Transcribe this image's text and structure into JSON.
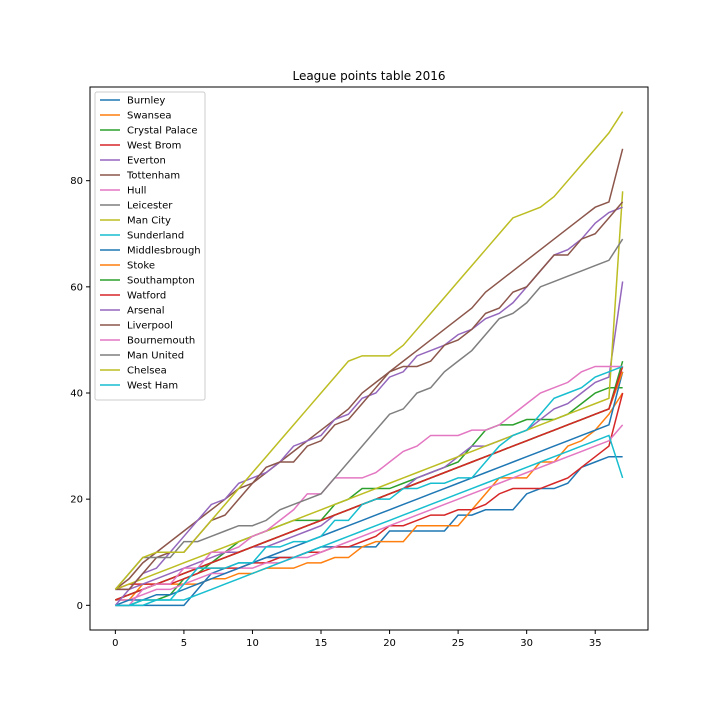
{
  "chart_data": {
    "type": "line",
    "title": "League points table 2016",
    "xlabel": "",
    "ylabel": "",
    "xlim": [
      -1.85,
      38.85
    ],
    "ylim": [
      -4.65,
      97.65
    ],
    "xticks": [
      0,
      5,
      10,
      15,
      20,
      25,
      30,
      35
    ],
    "yticks": [
      0,
      20,
      40,
      60,
      80
    ],
    "grid": false,
    "legend": "top-left",
    "series": [
      {
        "name": "Burnley",
        "color": "#1f77b4",
        "values": [
          0,
          0,
          0,
          0,
          0,
          0,
          3,
          6,
          7,
          8,
          8,
          9,
          9,
          9,
          10,
          11,
          11,
          11,
          11,
          11,
          14,
          14,
          14,
          14,
          14,
          17,
          17,
          18,
          18,
          18,
          21,
          22,
          22,
          23,
          26,
          27,
          28,
          28
        ]
      },
      {
        "name": "Swansea",
        "color": "#ff7f0e",
        "values": [
          1,
          1,
          4,
          4,
          4,
          4,
          4,
          5,
          5,
          6,
          6,
          7,
          7,
          7,
          8,
          8,
          9,
          9,
          11,
          12,
          12,
          12,
          15,
          15,
          15,
          15,
          18,
          21,
          24,
          24,
          24,
          27,
          27,
          30,
          31,
          33,
          36,
          40
        ]
      },
      {
        "name": "Crystal Palace",
        "color": "#2ca02c",
        "values": [
          0,
          0,
          1,
          1,
          2,
          5,
          6,
          8,
          10,
          12,
          13,
          14,
          15,
          16,
          16,
          16,
          19,
          20,
          22,
          22,
          22,
          23,
          24,
          25,
          26,
          27,
          30,
          33,
          34,
          34,
          35,
          35,
          35,
          36,
          38,
          40,
          41,
          41
        ]
      },
      {
        "name": "West Brom",
        "color": "#d62728",
        "values": [
          3,
          4,
          4,
          4,
          4,
          5,
          6,
          7,
          7,
          7,
          8,
          8,
          9,
          9,
          10,
          10,
          11,
          11,
          12,
          13,
          15,
          15,
          16,
          17,
          17,
          18,
          18,
          19,
          21,
          22,
          22,
          22,
          23,
          24,
          26,
          28,
          30,
          40
        ]
      },
      {
        "name": "Everton",
        "color": "#9467bd",
        "values": [
          3,
          3,
          4,
          5,
          6,
          7,
          8,
          9,
          10,
          10,
          11,
          11,
          12,
          13,
          14,
          15,
          17,
          18,
          19,
          20,
          21,
          22,
          24,
          25,
          26,
          28,
          30,
          30,
          31,
          32,
          33,
          35,
          37,
          38,
          40,
          42,
          43,
          61
        ]
      },
      {
        "name": "Tottenham",
        "color": "#8c564b",
        "values": [
          3,
          5,
          8,
          10,
          12,
          14,
          16,
          18,
          20,
          22,
          23,
          25,
          27,
          29,
          31,
          33,
          35,
          37,
          40,
          42,
          44,
          46,
          48,
          50,
          52,
          54,
          56,
          59,
          61,
          63,
          65,
          67,
          69,
          71,
          73,
          75,
          76,
          86
        ]
      },
      {
        "name": "Hull",
        "color": "#e377c2",
        "values": [
          1,
          1,
          2,
          3,
          3,
          4,
          5,
          6,
          6,
          7,
          7,
          8,
          8,
          9,
          9,
          10,
          11,
          12,
          13,
          14,
          15,
          16,
          17,
          18,
          19,
          20,
          21,
          22,
          23,
          24,
          25,
          26,
          27,
          28,
          29,
          30,
          31,
          34
        ]
      },
      {
        "name": "Leicester",
        "color": "#7f7f7f",
        "values": [
          1,
          2,
          3,
          4,
          5,
          6,
          7,
          8,
          9,
          10,
          11,
          12,
          13,
          14,
          15,
          16,
          17,
          18,
          19,
          20,
          21,
          22,
          23,
          24,
          25,
          26,
          27,
          28,
          29,
          30,
          31,
          32,
          33,
          34,
          35,
          36,
          37,
          44
        ]
      },
      {
        "name": "Man City",
        "color": "#bcbd22",
        "values": [
          3,
          4,
          5,
          6,
          7,
          8,
          9,
          10,
          11,
          12,
          13,
          14,
          15,
          16,
          17,
          18,
          19,
          20,
          21,
          22,
          23,
          24,
          25,
          26,
          27,
          28,
          29,
          30,
          31,
          32,
          33,
          34,
          35,
          36,
          37,
          38,
          39,
          78
        ]
      },
      {
        "name": "Sunderland",
        "color": "#17becf",
        "values": [
          0,
          0,
          0,
          1,
          1,
          1,
          2,
          3,
          4,
          5,
          6,
          7,
          8,
          9,
          10,
          11,
          12,
          13,
          14,
          15,
          16,
          17,
          18,
          19,
          20,
          21,
          22,
          23,
          24,
          25,
          26,
          27,
          28,
          29,
          30,
          31,
          32,
          24
        ]
      },
      {
        "name": "Middlesbrough",
        "color": "#1f77b4",
        "values": [
          0,
          1,
          1,
          2,
          2,
          3,
          4,
          5,
          6,
          7,
          8,
          9,
          10,
          11,
          12,
          13,
          14,
          15,
          16,
          17,
          18,
          19,
          20,
          21,
          22,
          23,
          24,
          25,
          26,
          27,
          28,
          29,
          30,
          31,
          32,
          33,
          34,
          44
        ]
      },
      {
        "name": "Stoke",
        "color": "#ff7f0e",
        "values": [
          1,
          2,
          3,
          4,
          5,
          6,
          7,
          8,
          9,
          10,
          11,
          12,
          13,
          14,
          15,
          16,
          17,
          18,
          19,
          20,
          21,
          22,
          23,
          24,
          25,
          26,
          27,
          28,
          29,
          30,
          31,
          32,
          33,
          34,
          35,
          36,
          37,
          44
        ]
      },
      {
        "name": "Southampton",
        "color": "#2ca02c",
        "values": [
          1,
          2,
          3,
          4,
          5,
          6,
          7,
          8,
          9,
          10,
          11,
          12,
          13,
          14,
          15,
          16,
          17,
          18,
          19,
          20,
          21,
          22,
          23,
          24,
          25,
          26,
          27,
          28,
          29,
          30,
          31,
          32,
          33,
          34,
          35,
          36,
          37,
          46
        ]
      },
      {
        "name": "Watford",
        "color": "#d62728",
        "values": [
          1,
          2,
          3,
          4,
          5,
          6,
          7,
          8,
          9,
          10,
          11,
          12,
          13,
          14,
          15,
          16,
          17,
          18,
          19,
          20,
          21,
          22,
          23,
          24,
          25,
          26,
          27,
          28,
          29,
          30,
          31,
          32,
          33,
          34,
          35,
          36,
          37,
          45
        ]
      },
      {
        "name": "Arsenal",
        "color": "#9467bd",
        "values": [
          0,
          3,
          6,
          7,
          10,
          13,
          16,
          19,
          20,
          23,
          24,
          25,
          27,
          30,
          31,
          32,
          35,
          36,
          39,
          40,
          43,
          44,
          47,
          48,
          49,
          51,
          52,
          54,
          55,
          57,
          60,
          63,
          66,
          67,
          69,
          72,
          74,
          75
        ]
      },
      {
        "name": "Liverpool",
        "color": "#8c564b",
        "values": [
          3,
          3,
          6,
          9,
          10,
          10,
          13,
          16,
          17,
          20,
          23,
          26,
          27,
          27,
          30,
          31,
          34,
          35,
          38,
          41,
          44,
          45,
          45,
          46,
          49,
          50,
          52,
          55,
          56,
          59,
          60,
          63,
          66,
          66,
          69,
          70,
          73,
          76
        ]
      },
      {
        "name": "Bournemouth",
        "color": "#e377c2",
        "values": [
          0,
          0,
          3,
          4,
          4,
          7,
          7,
          10,
          10,
          11,
          13,
          14,
          16,
          18,
          21,
          21,
          24,
          24,
          24,
          25,
          27,
          29,
          30,
          32,
          32,
          32,
          33,
          33,
          34,
          36,
          38,
          40,
          41,
          42,
          44,
          45,
          45,
          45
        ]
      },
      {
        "name": "Man United",
        "color": "#7f7f7f",
        "values": [
          3,
          6,
          9,
          9,
          9,
          12,
          12,
          13,
          14,
          15,
          15,
          16,
          18,
          19,
          20,
          21,
          24,
          27,
          30,
          33,
          36,
          37,
          40,
          41,
          44,
          46,
          48,
          51,
          54,
          55,
          57,
          60,
          61,
          62,
          63,
          64,
          65,
          69
        ]
      },
      {
        "name": "Chelsea",
        "color": "#bcbd22",
        "values": [
          3,
          6,
          9,
          10,
          10,
          10,
          13,
          16,
          19,
          22,
          25,
          28,
          31,
          34,
          37,
          40,
          43,
          46,
          47,
          47,
          47,
          49,
          52,
          55,
          58,
          61,
          64,
          67,
          70,
          73,
          74,
          75,
          77,
          80,
          83,
          86,
          89,
          93
        ]
      },
      {
        "name": "West Ham",
        "color": "#17becf",
        "values": [
          0,
          0,
          1,
          1,
          1,
          4,
          7,
          7,
          7,
          8,
          8,
          11,
          11,
          12,
          12,
          13,
          16,
          16,
          19,
          20,
          20,
          22,
          22,
          23,
          23,
          24,
          24,
          27,
          30,
          32,
          33,
          36,
          39,
          40,
          41,
          43,
          44,
          45
        ]
      }
    ]
  }
}
